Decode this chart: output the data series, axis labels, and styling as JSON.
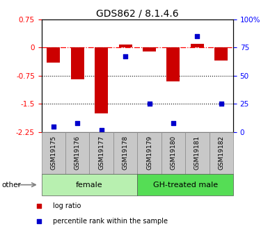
{
  "title": "GDS862 / 8.1.4.6",
  "samples": [
    "GSM19175",
    "GSM19176",
    "GSM19177",
    "GSM19178",
    "GSM19179",
    "GSM19180",
    "GSM19181",
    "GSM19182"
  ],
  "log_ratio": [
    -0.4,
    -0.85,
    -1.75,
    0.07,
    -0.1,
    -0.9,
    0.1,
    -0.35
  ],
  "percentile_rank": [
    5,
    8,
    2,
    67,
    25,
    8,
    85,
    25
  ],
  "ylim_left": [
    -2.25,
    0.75
  ],
  "ylim_right": [
    0,
    100
  ],
  "yticks_left": [
    -2.25,
    -1.5,
    -0.75,
    0.0,
    0.75
  ],
  "yticks_right": [
    0,
    25,
    50,
    75,
    100
  ],
  "ytick_labels_left": [
    "-2.25",
    "-1.5",
    "-0.75",
    "0",
    "0.75"
  ],
  "ytick_labels_right": [
    "0",
    "25",
    "50",
    "75",
    "100%"
  ],
  "hlines_dotted": [
    -0.75,
    -1.5
  ],
  "hline_dashdot": 0.0,
  "groups": [
    {
      "label": "female",
      "start": 0,
      "end": 3,
      "color": "#b8f0b0"
    },
    {
      "label": "GH-treated male",
      "start": 4,
      "end": 7,
      "color": "#55dd55"
    }
  ],
  "bar_color": "#cc0000",
  "dot_color": "#0000cc",
  "bar_width": 0.55,
  "title_fontsize": 10,
  "tick_fontsize": 7.5,
  "sample_fontsize": 6.5,
  "group_fontsize": 8,
  "legend_fontsize": 7,
  "other_label": "other",
  "gray_box_color": "#c8c8c8",
  "gray_box_edge": "#888888"
}
